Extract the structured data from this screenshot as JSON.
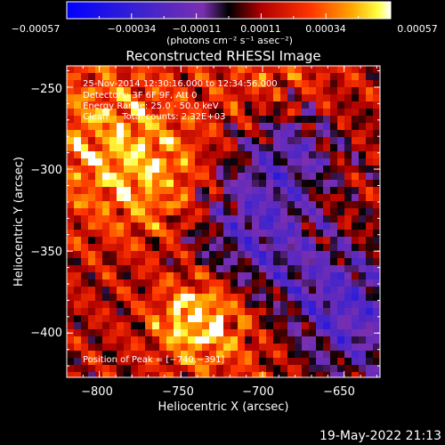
{
  "chart_data": {
    "type": "heatmap",
    "title": "Reconstructed RHESSI Image",
    "xlabel": "Heliocentric X (arcsec)",
    "ylabel": "Heliocentric Y (arcsec)",
    "xlim": [
      -820,
      -628
    ],
    "ylim": [
      -427,
      -237
    ],
    "x_ticks": [
      -800,
      -750,
      -700,
      -650
    ],
    "x_tick_labels": [
      "−800",
      "−750",
      "−700",
      "−650"
    ],
    "y_ticks": [
      -250,
      -300,
      -350,
      -400
    ],
    "y_tick_labels": [
      "−250",
      "−300",
      "−350",
      "−400"
    ],
    "colorbar": {
      "range": [
        -0.00057,
        0.00057
      ],
      "tick_labels": [
        "−0.00057",
        "−0.00034",
        "−0.00011",
        "0.00011",
        "0.00034",
        "0.00057"
      ],
      "unit_label": "(photons cm⁻² s⁻¹ asec⁻²)"
    },
    "annotations": [
      "25-Nov-2014 12:30:16.000 to 12:34:56.000",
      "Detectors: 3F 6F 9F, Att 0",
      "Energy Range: 25.0 - 50.0 keV",
      "Clean     Total counts: 2.32E+03"
    ],
    "peak_label": "Position of Peak = [−740,−391]",
    "peak": [
      -740,
      -391
    ],
    "grid": false
  },
  "footer": {
    "timestamp": "19-May-2022 21:13"
  },
  "colors": {
    "background": "#000000",
    "foreground": "#ffffff"
  }
}
